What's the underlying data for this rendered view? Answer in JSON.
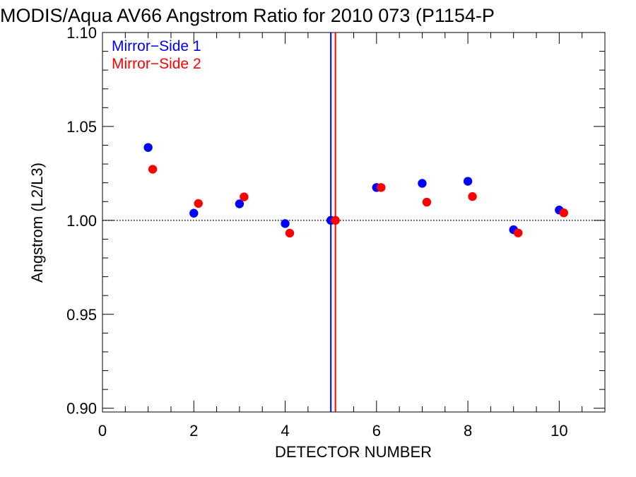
{
  "chart_data": {
    "type": "scatter",
    "title": "MODIS/Aqua AV66 Angstrom Ratio for 2010 073 (P1154-P",
    "xlabel": "DETECTOR NUMBER",
    "ylabel": "Angstrom (L2/L3)",
    "xlim": [
      0,
      11
    ],
    "ylim": [
      0.898,
      1.1
    ],
    "xticks": [
      0,
      2,
      4,
      6,
      8,
      10
    ],
    "xtick_labels": [
      "0",
      "2",
      "4",
      "6",
      "8",
      "10"
    ],
    "yticks": [
      0.9,
      0.95,
      1.0,
      1.05,
      1.1
    ],
    "ytick_labels": [
      "0.90",
      "0.95",
      "1.00",
      "1.05",
      "1.10"
    ],
    "grid": false,
    "legend_position": "top-left",
    "reference_line": {
      "y": 1.0,
      "style": "dotted",
      "color": "#000000"
    },
    "vertical_markers": [
      {
        "x": 5.0,
        "color": "#0000ff"
      },
      {
        "x": 5.1,
        "color": "#ff0000"
      }
    ],
    "series": [
      {
        "name": "Mirror−Side 1",
        "color": "#0000ff",
        "x": [
          1,
          2,
          3,
          4,
          5,
          6,
          7,
          8,
          9,
          10
        ],
        "y": [
          1.0388,
          1.0038,
          1.0088,
          0.9983,
          1.0,
          1.0175,
          1.0197,
          1.0208,
          0.995,
          1.0055
        ]
      },
      {
        "name": "Mirror−Side 2",
        "color": "#ff0000",
        "x": [
          1.1,
          2.1,
          3.1,
          4.1,
          5.1,
          6.1,
          7.1,
          8.1,
          9.1,
          10.1
        ],
        "y": [
          1.0272,
          1.009,
          1.0125,
          0.9932,
          1.0,
          1.0175,
          1.0097,
          1.0127,
          0.9933,
          1.004
        ]
      }
    ]
  }
}
